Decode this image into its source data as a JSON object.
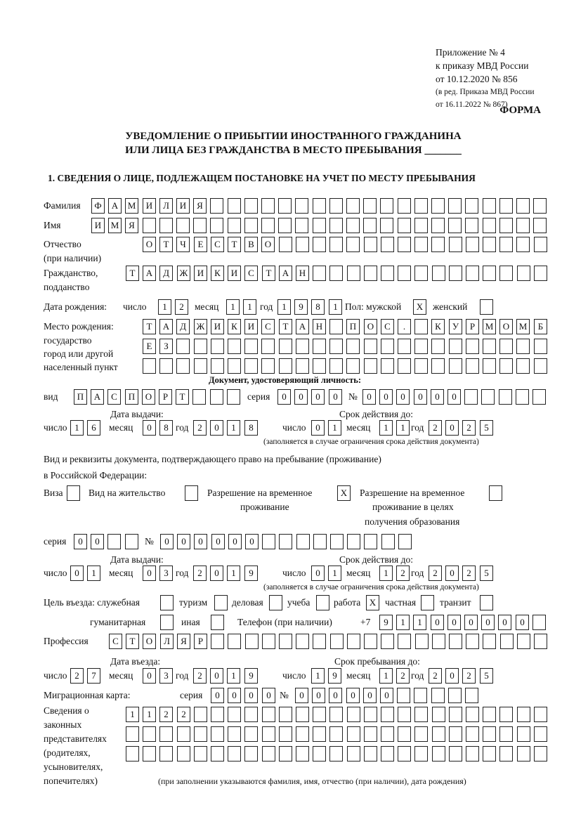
{
  "header": {
    "line1": "Приложение № 4",
    "line2": "к приказу МВД России",
    "line3": "от 10.12.2020 № 856",
    "line4": "(в ред. Приказа МВД России",
    "line5": "от 16.11.2022 № 867)",
    "forma": "ФОРМА",
    "title1": "УВЕДОМЛЕНИЕ О ПРИБЫТИИ ИНОСТРАННОГО ГРАЖДАНИНА",
    "title2": "ИЛИ ЛИЦА БЕЗ ГРАЖДАНСТВА В МЕСТО ПРЕБЫВАНИЯ _______",
    "section1": "1. СВЕДЕНИЯ О ЛИЦЕ, ПОДЛЕЖАЩЕМ ПОСТАНОВКЕ НА УЧЕТ ПО МЕСТУ ПРЕБЫВАНИЯ"
  },
  "labels": {
    "surname": "Фамилия",
    "name": "Имя",
    "patronymic1": "Отчество",
    "patronymic2": "(при наличии)",
    "citizenship1": "Гражданство,",
    "citizenship2": "подданство",
    "birth_date": "Дата рождения:",
    "day": "число",
    "month": "месяц",
    "year": "год",
    "sex": "Пол: мужской",
    "female": "женский",
    "birthplace1": "Место рождения:",
    "birthplace2": "государство",
    "birthplace3": "город или другой",
    "birthplace4": "населенный пункт",
    "id_doc": "Документ, удостоверяющий личность:",
    "kind": "вид",
    "series": "серия",
    "number": "№",
    "issue_date": "Дата выдачи:",
    "valid_until": "Срок действия до:",
    "valid_note": "(заполняется в случае ограничения срока действия документа)",
    "stay_doc1": "Вид и реквизиты документа, подтверждающего право на пребывание (проживание)",
    "stay_doc2": "в Российской Федерации:",
    "visa": "Виза",
    "residence": "Вид на жительство",
    "rvp1": "Разрешение на временное",
    "rvp2": "проживание",
    "rvp_edu1": "Разрешение на временное",
    "rvp_edu2": "проживание в целях",
    "rvp_edu3": "получения образования",
    "purpose": "Цель въезда: служебная",
    "tourism": "туризм",
    "business": "деловая",
    "study": "учеба",
    "work": "работа",
    "private": "частная",
    "transit": "транзит",
    "humanitarian": "гуманитарная",
    "other": "иная",
    "phone": "Телефон (при наличии)",
    "phone_prefix": "+7",
    "profession": "Профессия",
    "entry_date": "Дата въезда:",
    "stay_until": "Срок пребывания до:",
    "migration_card": "Миграционная карта:",
    "representatives1": "Сведения о",
    "representatives2": "законных",
    "representatives3": "представителях",
    "representatives4": "(родителях,",
    "representatives5": "усыновителях,",
    "representatives6": "попечителях)",
    "representatives_note": "(при заполнении указываются фамилия, имя, отчество (при наличии), дата рождения)"
  },
  "fields": {
    "surname": "ФАМИЛИЯ",
    "name": "ИМЯ",
    "patronymic": "ОТЧЕСТВО",
    "citizenship": "ТАДЖИКИСТАН",
    "birth_day": "12",
    "birth_month": "11",
    "birth_year": "1981",
    "sex_male": "X",
    "sex_female": "",
    "birthplace_row1": "ТАДЖИКИСТАН ПОС. КУРМОМБ",
    "birthplace_row2": "ЕЗ",
    "birthplace_row3": "",
    "id_kind": "ПАСПОРТ",
    "id_series": "0000",
    "id_number": "000000",
    "id_issue_day": "16",
    "id_issue_month": "08",
    "id_issue_year": "2018",
    "id_valid_day": "01",
    "id_valid_month": "11",
    "id_valid_year": "2025",
    "visa": "",
    "residence": "",
    "rvp": "X",
    "rvp_edu": "",
    "stay_series": "00",
    "stay_number": "000000",
    "stay_issue_day": "01",
    "stay_issue_month": "03",
    "stay_issue_year": "2019",
    "stay_valid_day": "01",
    "stay_valid_month": "12",
    "stay_valid_year": "2025",
    "purpose_official": "",
    "purpose_tourism": "",
    "purpose_business": "",
    "purpose_study": "",
    "purpose_work": "X",
    "purpose_private": "",
    "purpose_transit": "",
    "purpose_humanitarian": "",
    "purpose_other": "",
    "phone": "911000000",
    "profession": "СТОЛЯР",
    "entry_day": "27",
    "entry_month": "03",
    "entry_year": "2019",
    "stay_until_day": "19",
    "stay_until_month": "12",
    "stay_until_year": "2025",
    "mig_series": "0000",
    "mig_number": "000000",
    "representatives_row1": "1122",
    "representatives_row2": "",
    "representatives_row3": ""
  }
}
